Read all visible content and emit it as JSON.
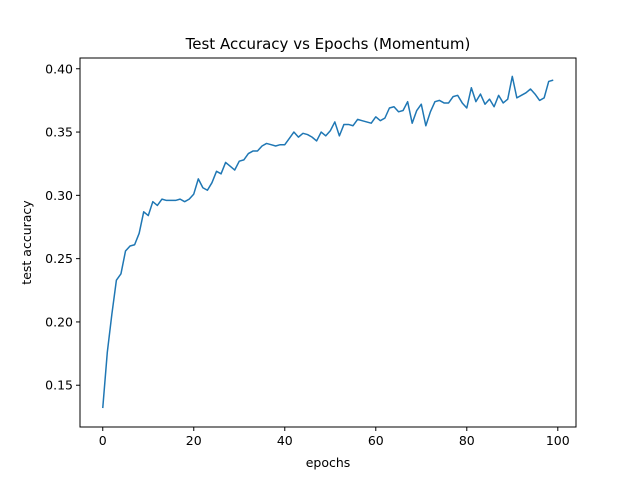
{
  "chart_data": {
    "type": "line",
    "title": "Test Accuracy vs Epochs (Momentum)",
    "xlabel": "epochs",
    "ylabel": "test accuracy",
    "xlim": [
      -5,
      104
    ],
    "ylim": [
      0.117,
      0.4085
    ],
    "xticks": [
      0,
      20,
      40,
      60,
      80,
      100
    ],
    "xtick_labels": [
      "0",
      "20",
      "40",
      "60",
      "80",
      "100"
    ],
    "yticks": [
      0.15,
      0.2,
      0.25,
      0.3,
      0.35,
      0.4
    ],
    "ytick_labels": [
      "0.15",
      "0.20",
      "0.25",
      "0.30",
      "0.35",
      "0.40"
    ],
    "grid": false,
    "color": "#1f77b4",
    "series": [
      {
        "x": [
          0,
          1,
          2,
          3,
          4,
          5,
          6,
          7,
          8,
          9,
          10,
          11,
          12,
          13,
          14,
          15,
          16,
          17,
          18,
          19,
          20,
          21,
          22,
          23,
          24,
          25,
          26,
          27,
          28,
          29,
          30,
          31,
          32,
          33,
          34,
          35,
          36,
          37,
          38,
          39,
          40,
          41,
          42,
          43,
          44,
          45,
          46,
          47,
          48,
          49,
          50,
          51,
          52,
          53,
          54,
          55,
          56,
          57,
          58,
          59,
          60,
          61,
          62,
          63,
          64,
          65,
          66,
          67,
          68,
          69,
          70,
          71,
          72,
          73,
          74,
          75,
          76,
          77,
          78,
          79,
          80,
          81,
          82,
          83,
          84,
          85,
          86,
          87,
          88,
          89,
          90,
          91,
          92,
          93,
          94,
          95,
          96,
          97,
          98,
          99
        ],
        "values": [
          0.132,
          0.176,
          0.206,
          0.233,
          0.238,
          0.256,
          0.26,
          0.261,
          0.27,
          0.287,
          0.284,
          0.295,
          0.292,
          0.297,
          0.296,
          0.296,
          0.296,
          0.297,
          0.295,
          0.297,
          0.301,
          0.313,
          0.306,
          0.304,
          0.31,
          0.319,
          0.317,
          0.326,
          0.323,
          0.32,
          0.327,
          0.328,
          0.333,
          0.335,
          0.335,
          0.339,
          0.341,
          0.34,
          0.339,
          0.34,
          0.34,
          0.345,
          0.35,
          0.346,
          0.349,
          0.348,
          0.346,
          0.343,
          0.35,
          0.347,
          0.351,
          0.358,
          0.347,
          0.356,
          0.356,
          0.355,
          0.36,
          0.359,
          0.358,
          0.357,
          0.362,
          0.359,
          0.361,
          0.369,
          0.37,
          0.366,
          0.367,
          0.374,
          0.357,
          0.367,
          0.372,
          0.355,
          0.366,
          0.374,
          0.375,
          0.373,
          0.373,
          0.378,
          0.379,
          0.373,
          0.369,
          0.385,
          0.374,
          0.38,
          0.372,
          0.376,
          0.37,
          0.379,
          0.373,
          0.376,
          0.394,
          0.377,
          0.379,
          0.381,
          0.384,
          0.38,
          0.375,
          0.377,
          0.39,
          0.391
        ]
      }
    ]
  }
}
